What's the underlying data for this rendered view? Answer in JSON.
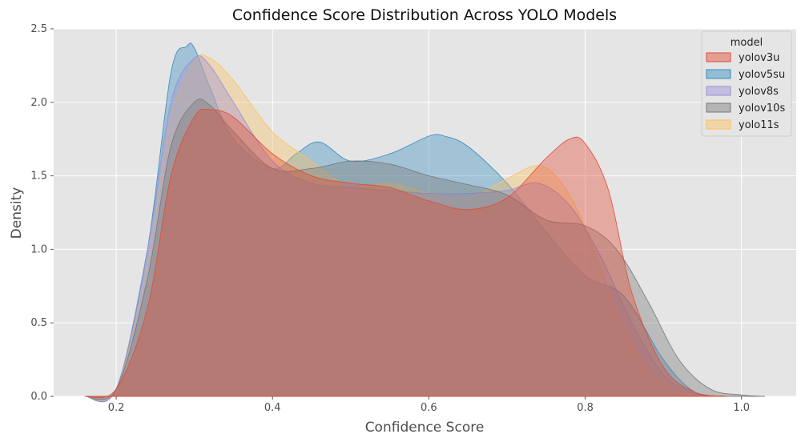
{
  "chart_data": {
    "type": "area",
    "title": "Confidence Score Distribution Across YOLO Models",
    "xlabel": "Confidence Score",
    "ylabel": "Density",
    "xlim": [
      0.12,
      1.07
    ],
    "ylim": [
      0,
      2.5
    ],
    "x_ticks": [
      0.2,
      0.4,
      0.6,
      0.8,
      1.0
    ],
    "x_tick_labels": [
      "0.2",
      "0.4",
      "0.6",
      "0.8",
      "1.0"
    ],
    "y_ticks": [
      0.0,
      0.5,
      1.0,
      1.5,
      2.0,
      2.5
    ],
    "y_tick_labels": [
      "0.0",
      "0.5",
      "1.0",
      "1.5",
      "2.0",
      "2.5"
    ],
    "grid": true,
    "background": "#e5e5e5",
    "legend": {
      "title": "model",
      "placement": "top-right"
    },
    "series": [
      {
        "name": "yolov3u",
        "color": "#e24a33",
        "x": [
          0.16,
          0.2,
          0.24,
          0.27,
          0.3,
          0.32,
          0.35,
          0.4,
          0.45,
          0.5,
          0.55,
          0.6,
          0.65,
          0.7,
          0.75,
          0.78,
          0.8,
          0.83,
          0.86,
          0.9,
          0.94,
          0.98
        ],
        "y": [
          0.0,
          0.05,
          0.6,
          1.5,
          1.9,
          1.95,
          1.9,
          1.65,
          1.5,
          1.45,
          1.42,
          1.33,
          1.27,
          1.35,
          1.62,
          1.75,
          1.72,
          1.4,
          0.7,
          0.2,
          0.03,
          0.0
        ]
      },
      {
        "name": "yolov5su",
        "color": "#348abd",
        "x": [
          0.16,
          0.2,
          0.24,
          0.27,
          0.29,
          0.3,
          0.32,
          0.35,
          0.4,
          0.43,
          0.46,
          0.5,
          0.55,
          0.6,
          0.62,
          0.65,
          0.7,
          0.75,
          0.8,
          0.85,
          0.9,
          0.94,
          0.98
        ],
        "y": [
          0.0,
          0.05,
          1.0,
          2.2,
          2.38,
          2.37,
          2.1,
          1.75,
          1.55,
          1.65,
          1.73,
          1.6,
          1.65,
          1.77,
          1.77,
          1.7,
          1.45,
          1.12,
          0.82,
          0.68,
          0.25,
          0.03,
          0.0
        ]
      },
      {
        "name": "yolov8s",
        "color": "#988ed5",
        "x": [
          0.16,
          0.2,
          0.24,
          0.27,
          0.3,
          0.32,
          0.35,
          0.4,
          0.45,
          0.5,
          0.55,
          0.6,
          0.65,
          0.7,
          0.74,
          0.78,
          0.82,
          0.86,
          0.9,
          0.94,
          0.98
        ],
        "y": [
          0.0,
          0.05,
          1.0,
          2.0,
          2.3,
          2.25,
          2.0,
          1.6,
          1.45,
          1.42,
          1.4,
          1.38,
          1.38,
          1.4,
          1.45,
          1.3,
          0.95,
          0.5,
          0.15,
          0.02,
          0.0
        ]
      },
      {
        "name": "yolov10s",
        "color": "#777777",
        "x": [
          0.16,
          0.2,
          0.24,
          0.27,
          0.3,
          0.32,
          0.35,
          0.4,
          0.45,
          0.5,
          0.55,
          0.6,
          0.65,
          0.7,
          0.75,
          0.8,
          0.84,
          0.88,
          0.92,
          0.96,
          1.0,
          1.03
        ],
        "y": [
          0.0,
          0.05,
          0.8,
          1.7,
          2.0,
          1.98,
          1.8,
          1.55,
          1.55,
          1.6,
          1.58,
          1.5,
          1.44,
          1.37,
          1.2,
          1.16,
          1.0,
          0.65,
          0.25,
          0.05,
          0.01,
          0.0
        ]
      },
      {
        "name": "yolo11s",
        "color": "#fbc15e",
        "x": [
          0.16,
          0.2,
          0.24,
          0.27,
          0.3,
          0.32,
          0.35,
          0.4,
          0.45,
          0.48,
          0.5,
          0.55,
          0.6,
          0.65,
          0.7,
          0.74,
          0.77,
          0.8,
          0.84,
          0.88,
          0.92,
          0.96
        ],
        "y": [
          0.0,
          0.05,
          0.9,
          1.9,
          2.28,
          2.3,
          2.15,
          1.8,
          1.6,
          1.48,
          1.4,
          1.45,
          1.38,
          1.35,
          1.48,
          1.57,
          1.45,
          1.15,
          0.6,
          0.2,
          0.03,
          0.0
        ]
      }
    ],
    "draw_order": [
      "yolov5su",
      "yolo11s",
      "yolov8s",
      "yolov10s",
      "yolov3u"
    ]
  }
}
